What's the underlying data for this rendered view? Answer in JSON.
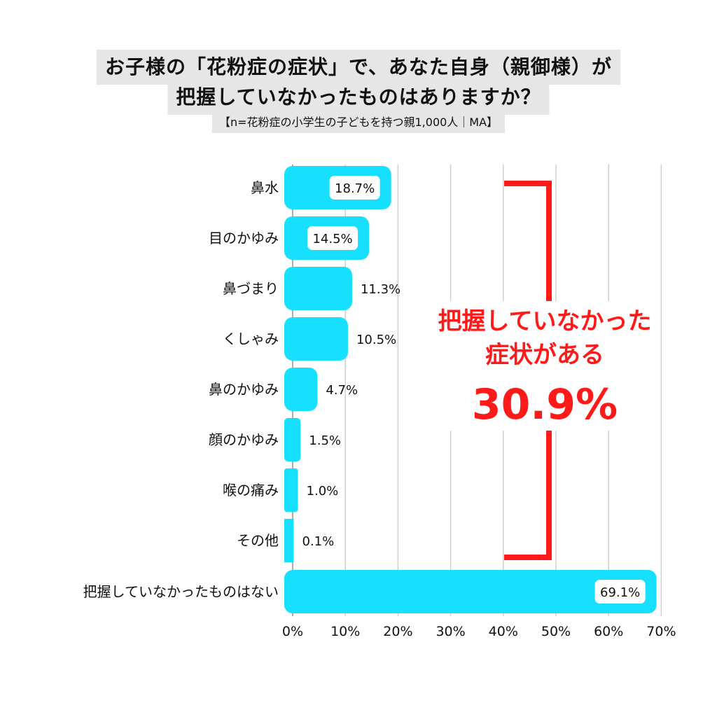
{
  "header": {
    "title_line1": "お子様の「花粉症の症状」で、あなた自身（親御様）が",
    "title_line2": "把握していなかったものはありますか？",
    "subtitle": "【n=花粉症の小学生の子どもを持つ親1,000人｜MA】"
  },
  "chart_data": {
    "type": "bar",
    "orientation": "horizontal",
    "categories": [
      "鼻水",
      "目のかゆみ",
      "鼻づまり",
      "くしゃみ",
      "鼻のかゆみ",
      "顔のかゆみ",
      "喉の痛み",
      "その他",
      "把握していなかったものはない"
    ],
    "values": [
      18.7,
      14.5,
      11.3,
      10.5,
      4.7,
      1.5,
      1.0,
      0.1,
      69.1
    ],
    "value_labels": [
      "18.7%",
      "14.5%",
      "11.3%",
      "10.5%",
      "4.7%",
      "1.5%",
      "1.0%",
      "0.1%",
      "69.1%"
    ],
    "x_ticks": [
      "0%",
      "10%",
      "20%",
      "30%",
      "40%",
      "50%",
      "60%",
      "70%"
    ],
    "xlim": [
      0,
      70
    ],
    "grid": true,
    "bar_color": "#17e0ff",
    "annotation": {
      "line1": "把握していなかった",
      "line2": "症状がある",
      "value": "30.9%",
      "color": "#ff1a1a"
    }
  }
}
